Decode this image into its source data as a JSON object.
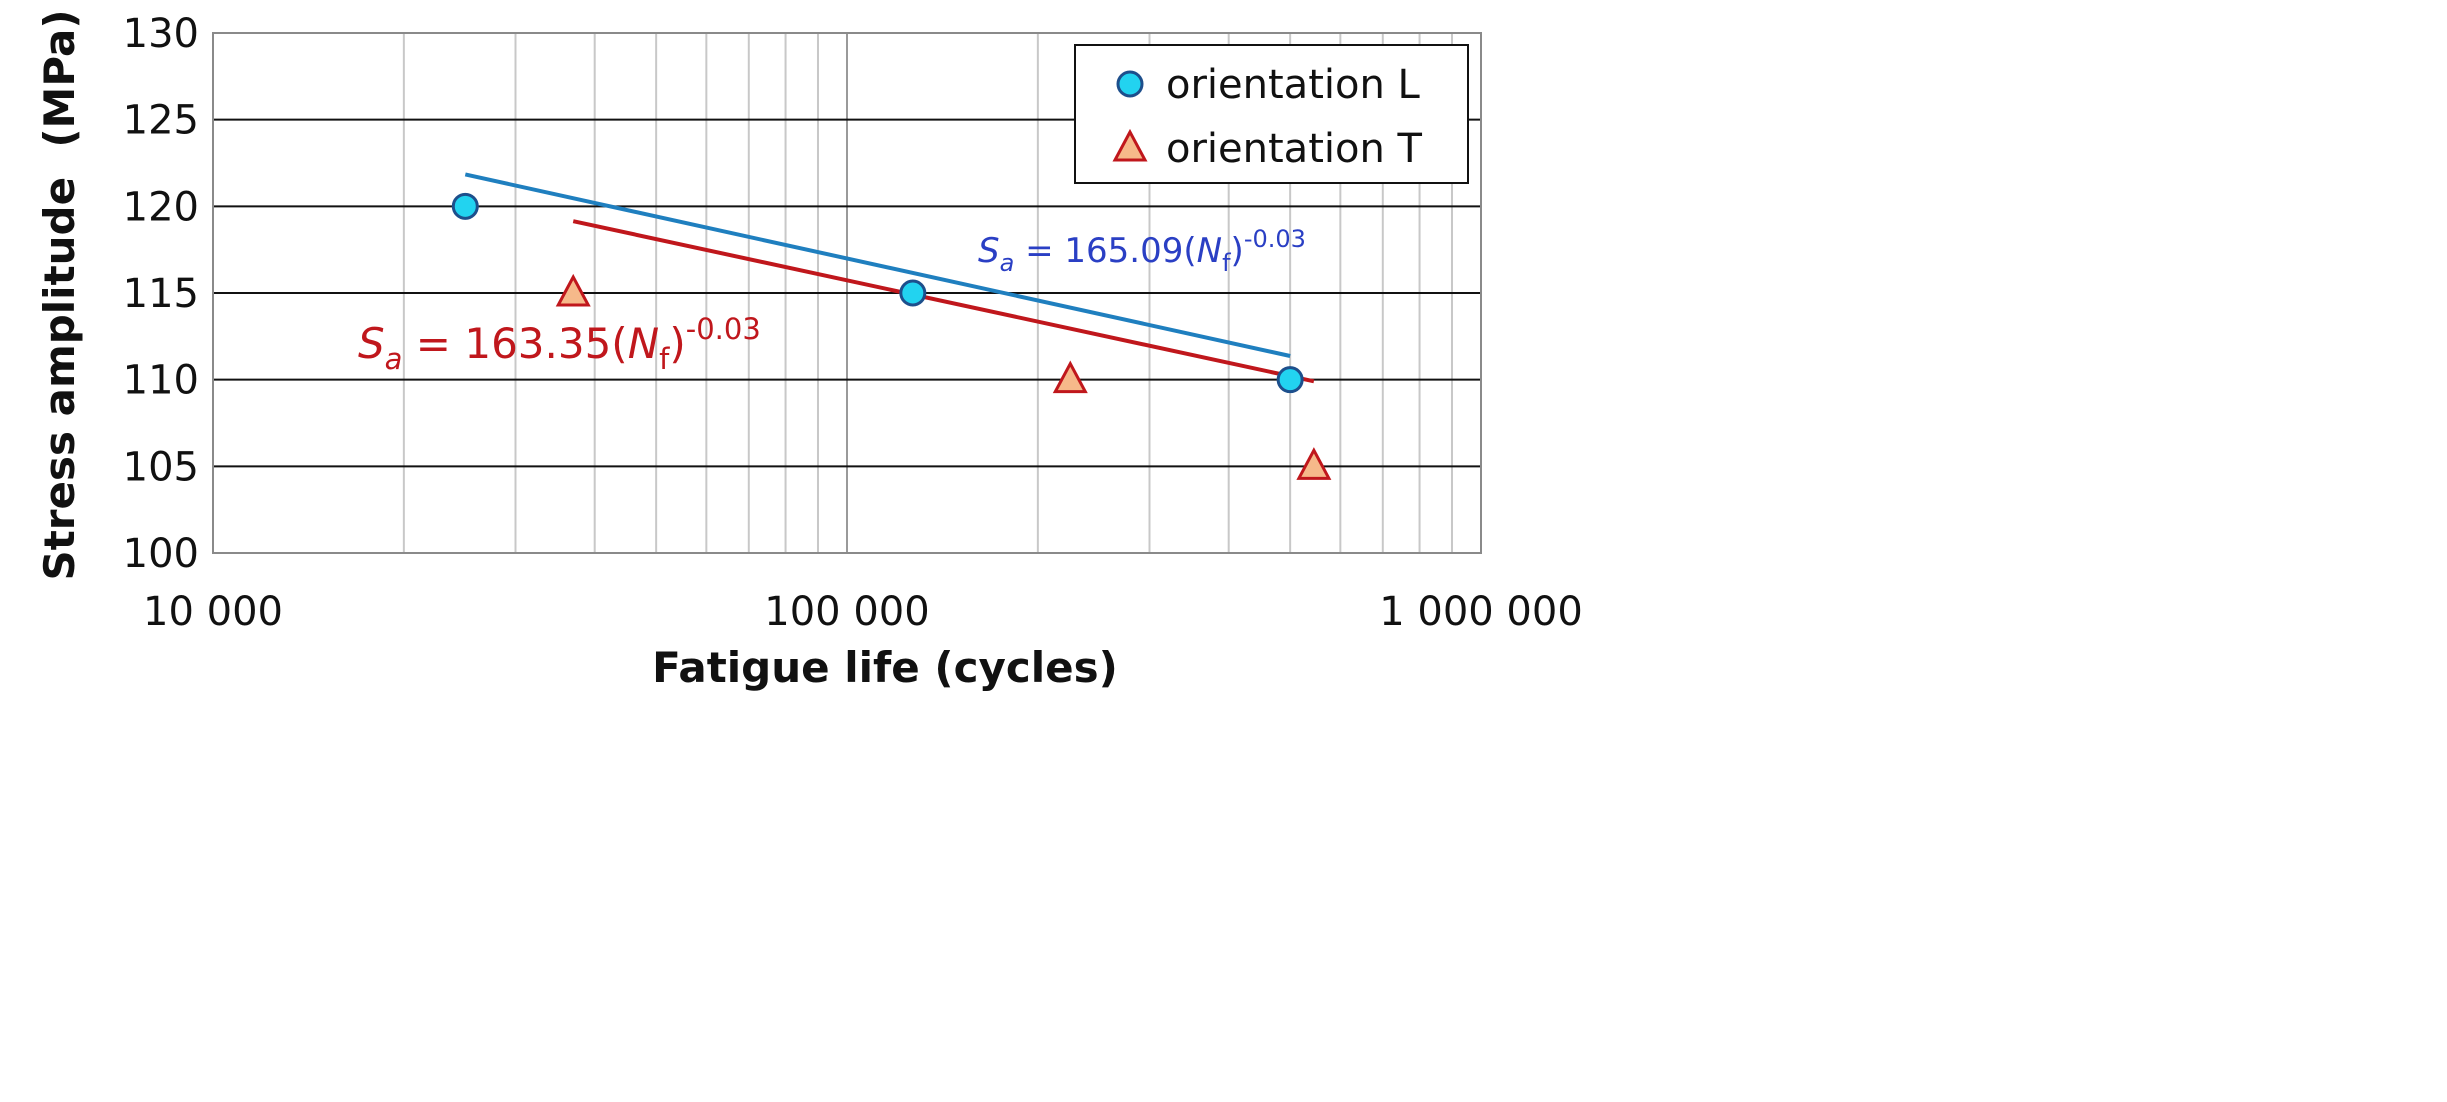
{
  "chart_data": {
    "type": "scatter",
    "xlabel": "Fatigue life (cycles)",
    "ylabel": "Stress amplitude  (MPa)",
    "x_scale": "log",
    "xlim": [
      10000,
      1000000
    ],
    "ylim": [
      100,
      130
    ],
    "x_ticks": [
      10000,
      100000,
      1000000
    ],
    "x_tick_labels": [
      "10 000",
      "100 000",
      "1 000 000"
    ],
    "y_ticks": [
      100,
      105,
      110,
      115,
      120,
      125,
      130
    ],
    "y_tick_labels": [
      "100",
      "105",
      "110",
      "115",
      "120",
      "125",
      "130"
    ],
    "grid": true,
    "legend_position": "top-right",
    "series": [
      {
        "name": "orientation L",
        "marker": "circle",
        "color": "#1f7fbf",
        "marker_fill": "#22d3f0",
        "marker_edge": "#1d4f8c",
        "x": [
          25000,
          127000,
          500000
        ],
        "y": [
          120,
          115,
          110
        ],
        "fit": {
          "x_start": 25000,
          "x_end": 500000,
          "coef": 165.09,
          "exp": -0.03
        },
        "equation": {
          "lhs": "S",
          "sub": "a",
          "eq": " = 165.09(",
          "var": "N",
          "varsub": "f",
          "close": ")",
          "sup": "-0.03",
          "color": "#2a3fc4"
        }
      },
      {
        "name": "orientation T",
        "marker": "triangle",
        "color": "#c0171c",
        "marker_fill": "#f6b98a",
        "marker_edge": "#c0171c",
        "x": [
          37000,
          225000,
          545000
        ],
        "y": [
          115,
          110,
          105
        ],
        "fit": {
          "x_start": 37000,
          "x_end": 545000,
          "coef": 163.35,
          "exp": -0.03
        },
        "equation": {
          "lhs": "S",
          "sub": "a",
          "eq": " = 163.35(",
          "var": "N",
          "varsub": "f",
          "close": ")",
          "sup": "-0.03",
          "color": "#c0171c"
        }
      }
    ]
  }
}
